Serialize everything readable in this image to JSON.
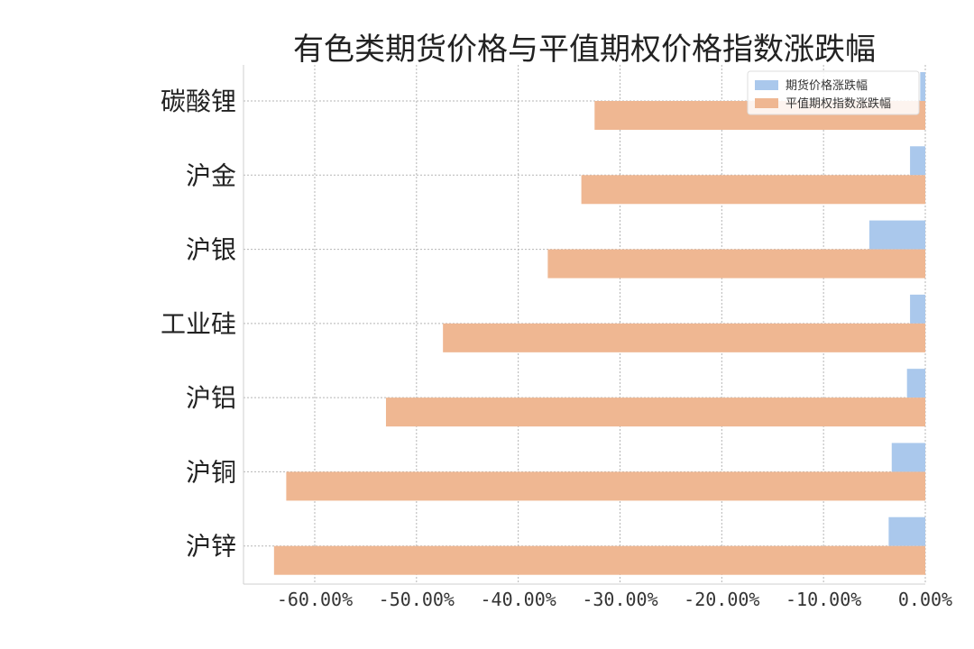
{
  "chart_data": {
    "type": "bar",
    "orientation": "horizontal",
    "title": "有色类期货价格与平值期权价格指数涨跌幅",
    "categories": [
      "碳酸锂",
      "沪金",
      "沪银",
      "工业硅",
      "沪铝",
      "沪铜",
      "沪锌"
    ],
    "series": [
      {
        "name": "期货价格涨跌幅",
        "color": "#aac8ec",
        "values": [
          -0.5,
          -1.5,
          -5.5,
          -1.5,
          -1.8,
          -3.3,
          -3.6
        ]
      },
      {
        "name": "平值期权指数涨跌幅",
        "color": "#efb792",
        "values": [
          -32.5,
          -33.8,
          -37.1,
          -47.4,
          -53.0,
          -62.8,
          -64.0
        ]
      }
    ],
    "xlim": [
      -67.0,
      0
    ],
    "xticks": [
      -60,
      -50,
      -40,
      -30,
      -20,
      -10,
      0
    ],
    "xtick_labels": [
      "-60.00%",
      "-50.00%",
      "-40.00%",
      "-30.00%",
      "-20.00%",
      "-10.00%",
      "0.00%"
    ],
    "grid": true,
    "legend_position": "top-right"
  }
}
